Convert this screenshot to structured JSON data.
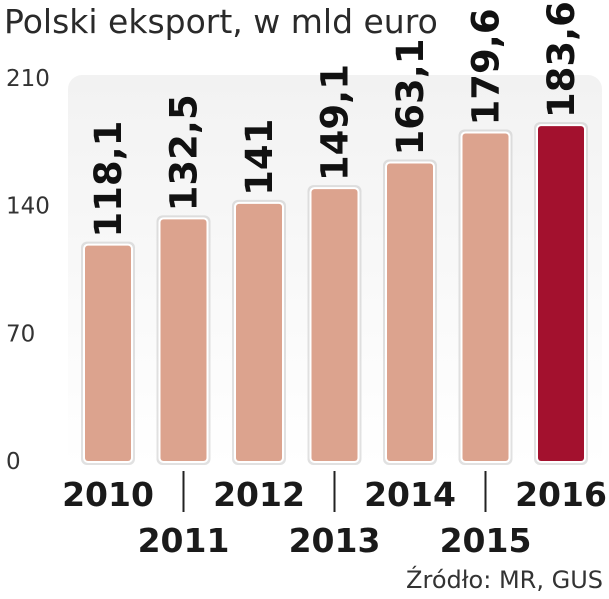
{
  "chart_data": {
    "type": "bar",
    "title": "Polski eksport, w mld euro",
    "categories": [
      "2010",
      "2011",
      "2012",
      "2013",
      "2014",
      "2015",
      "2016"
    ],
    "values": [
      118.1,
      132.5,
      141,
      149.1,
      163.1,
      179.6,
      183.6
    ],
    "value_labels": [
      "118,1",
      "132,5",
      "141",
      "149,1",
      "163,1",
      "179,6",
      "183,6"
    ],
    "yticks": [
      0,
      70,
      140,
      210
    ],
    "ylim": [
      0,
      210
    ],
    "bar_color": "#dca38e",
    "highlight_color": "#a3112e",
    "highlight_index": 6,
    "xlabel": "",
    "ylabel": "",
    "grid": false
  },
  "source": "Źródło: MR, GUS"
}
